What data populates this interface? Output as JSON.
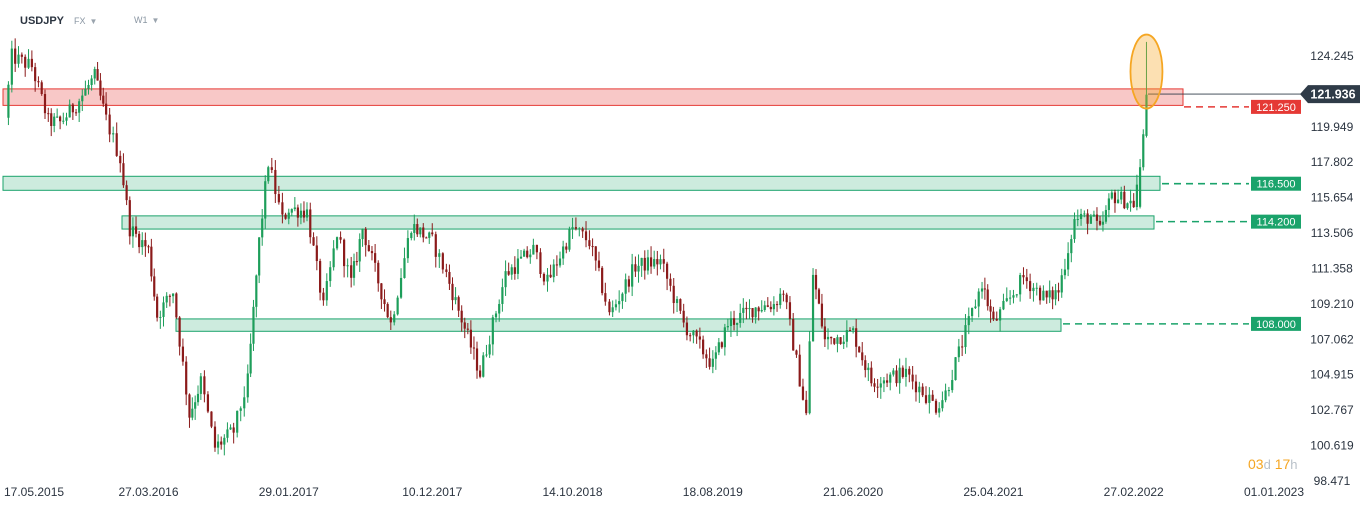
{
  "header": {
    "symbol": "USDJPY",
    "market": "FX",
    "interval": "W1"
  },
  "countdown": {
    "days": "03",
    "days_unit": "d",
    "hours": "17",
    "hours_unit": "h"
  },
  "colors": {
    "up": "#1d9e5a",
    "down": "#8b1a1a",
    "resistance": "#e53935",
    "support": "#1aa36b",
    "price_tag": "#2f3b48",
    "highlight": "#f5a623"
  },
  "chart_data": {
    "type": "candlestick",
    "symbol": "USDJPY",
    "interval": "W1",
    "y_ticks": [
      "124.245",
      "121.936",
      "119.949",
      "117.802",
      "115.654",
      "113.506",
      "111.358",
      "109.210",
      "107.062",
      "104.915",
      "102.767",
      "100.619",
      "98.471"
    ],
    "ylim": [
      98.471,
      126.0
    ],
    "x_ticks": [
      "17.05.2015",
      "27.03.2016",
      "29.01.2017",
      "10.12.2017",
      "14.10.2018",
      "18.08.2019",
      "21.06.2020",
      "25.04.2021",
      "27.02.2022",
      "01.01.2023"
    ],
    "current_price": "121.936",
    "levels": [
      {
        "value": 121.25,
        "label": "121.250",
        "kind": "resistance"
      },
      {
        "value": 116.5,
        "label": "116.500",
        "kind": "support"
      },
      {
        "value": 114.2,
        "label": "114.200",
        "kind": "support"
      },
      {
        "value": 108.0,
        "label": "108.000",
        "kind": "support"
      }
    ],
    "waypoints": [
      [
        "2015-05-17",
        120.5
      ],
      [
        "2015-06-01",
        124.2
      ],
      [
        "2015-07-15",
        123.6
      ],
      [
        "2015-08-20",
        120.3
      ],
      [
        "2015-09-15",
        120.2
      ],
      [
        "2015-10-20",
        121.3
      ],
      [
        "2015-11-30",
        123.0
      ],
      [
        "2015-12-25",
        120.4
      ],
      [
        "2016-01-25",
        118.0
      ],
      [
        "2016-02-15",
        113.8
      ],
      [
        "2016-03-27",
        112.5
      ],
      [
        "2016-04-15",
        108.5
      ],
      [
        "2016-05-20",
        110.0
      ],
      [
        "2016-06-25",
        102.5
      ],
      [
        "2016-07-20",
        104.5
      ],
      [
        "2016-08-20",
        100.5
      ],
      [
        "2016-09-30",
        101.5
      ],
      [
        "2016-10-31",
        104.5
      ],
      [
        "2016-11-25",
        113.0
      ],
      [
        "2016-12-15",
        117.8
      ],
      [
        "2017-01-15",
        114.3
      ],
      [
        "2017-01-29",
        115.0
      ],
      [
        "2017-03-10",
        114.8
      ],
      [
        "2017-04-15",
        109.0
      ],
      [
        "2017-05-15",
        113.5
      ],
      [
        "2017-06-15",
        110.5
      ],
      [
        "2017-07-10",
        113.8
      ],
      [
        "2017-09-10",
        108.0
      ],
      [
        "2017-10-25",
        114.0
      ],
      [
        "2017-12-10",
        113.0
      ],
      [
        "2018-01-10",
        111.0
      ],
      [
        "2018-03-25",
        105.0
      ],
      [
        "2018-05-20",
        111.0
      ],
      [
        "2018-07-20",
        112.5
      ],
      [
        "2018-08-20",
        110.5
      ],
      [
        "2018-10-14",
        113.8
      ],
      [
        "2018-11-20",
        113.0
      ],
      [
        "2018-12-25",
        109.5
      ],
      [
        "2019-01-03",
        108.5
      ],
      [
        "2019-03-01",
        111.5
      ],
      [
        "2019-04-25",
        111.8
      ],
      [
        "2019-06-15",
        108.0
      ],
      [
        "2019-08-18",
        105.5
      ],
      [
        "2019-09-20",
        108.0
      ],
      [
        "2019-11-20",
        109.0
      ],
      [
        "2019-12-30",
        109.2
      ],
      [
        "2020-01-20",
        110.0
      ],
      [
        "2020-03-10",
        102.5
      ],
      [
        "2020-03-25",
        111.0
      ],
      [
        "2020-04-20",
        107.0
      ],
      [
        "2020-06-21",
        107.5
      ],
      [
        "2020-07-31",
        104.5
      ],
      [
        "2020-10-15",
        105.0
      ],
      [
        "2020-12-20",
        103.0
      ],
      [
        "2021-01-10",
        103.8
      ],
      [
        "2021-03-31",
        110.5
      ],
      [
        "2021-04-25",
        108.0
      ],
      [
        "2021-06-30",
        110.8
      ],
      [
        "2021-08-20",
        109.5
      ],
      [
        "2021-09-15",
        110.0
      ],
      [
        "2021-10-20",
        114.3
      ],
      [
        "2021-11-25",
        114.5
      ],
      [
        "2021-12-15",
        113.6
      ],
      [
        "2022-01-10",
        115.8
      ],
      [
        "2022-02-27",
        115.3
      ],
      [
        "2022-03-13",
        117.5
      ],
      [
        "2022-03-20",
        120.5
      ],
      [
        "2022-03-27",
        121.9
      ]
    ]
  }
}
